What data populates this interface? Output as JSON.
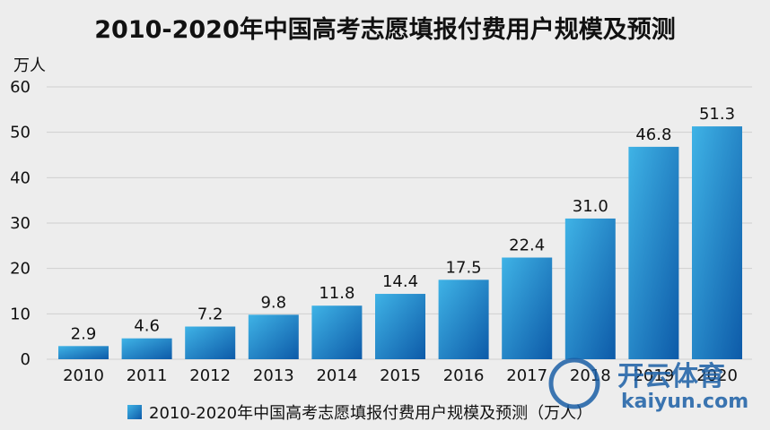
{
  "chart_data": {
    "type": "bar",
    "title": "2010-2020年中国高考志愿填报付费用户规模及预测",
    "unit": "万人",
    "categories": [
      "2010",
      "2011",
      "2012",
      "2013",
      "2014",
      "2015",
      "2016",
      "2017",
      "2018",
      "2019",
      "2020"
    ],
    "series": [
      {
        "name": "2010-2020年中国高考志愿填报付费用户规模及预测（万人）",
        "values": [
          2.9,
          4.6,
          7.2,
          9.8,
          11.8,
          14.4,
          17.5,
          22.4,
          31.0,
          46.8,
          51.3
        ],
        "labels": [
          "2.9",
          "4.6",
          "7.2",
          "9.8",
          "11.8",
          "14.4",
          "17.5",
          "22.4",
          "31.0",
          "46.8",
          "51.3"
        ]
      }
    ],
    "ylim": [
      0,
      60
    ],
    "yticks": [
      0,
      10,
      20,
      30,
      40,
      50,
      60
    ],
    "grid": true,
    "legend": "bottom",
    "colors": {
      "bar_light": "#3fb3e6",
      "bar_dark": "#0d5aa8",
      "grid": "#cfcfcf"
    }
  },
  "watermark": {
    "text": "开云体育",
    "subtext": "kaiyun.com"
  }
}
